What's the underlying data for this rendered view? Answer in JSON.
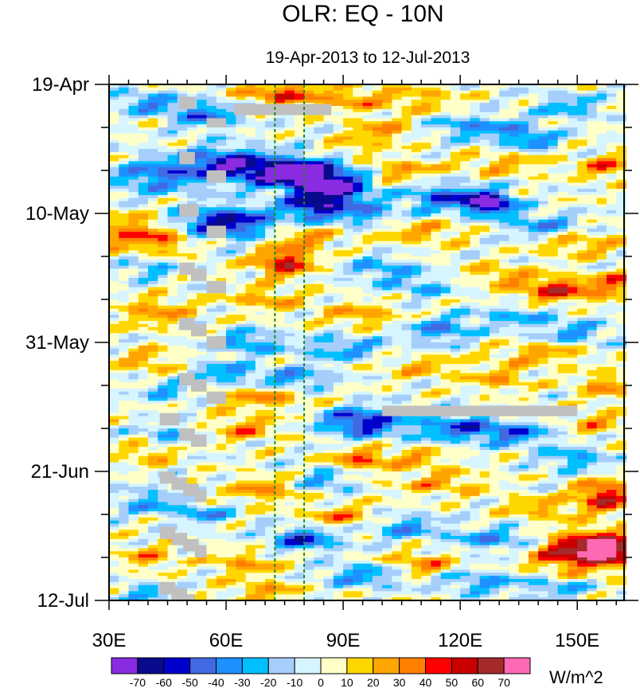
{
  "chart_data": {
    "type": "heatmap",
    "title": "OLR: EQ - 10N",
    "subtitle": "19-Apr-2013 to 12-Jul-2013",
    "xlabel": "",
    "ylabel": "",
    "xlim": [
      30,
      162
    ],
    "x_ticks": [
      {
        "value": 30,
        "label": "30E"
      },
      {
        "value": 60,
        "label": "60E"
      },
      {
        "value": 90,
        "label": "90E"
      },
      {
        "value": 120,
        "label": "120E"
      },
      {
        "value": 150,
        "label": "150E"
      }
    ],
    "time_ticks": [
      {
        "day": 0,
        "label": "19-Apr"
      },
      {
        "day": 21,
        "label": "10-May"
      },
      {
        "day": 42,
        "label": "31-May"
      },
      {
        "day": 63,
        "label": "21-Jun"
      },
      {
        "day": 84,
        "label": "12-Jul"
      }
    ],
    "time_range_days": [
      0,
      84
    ],
    "reference_lines_lon": [
      72.5,
      80
    ],
    "reference_line_color": "#228822",
    "missing_color": "#c0c0c0",
    "missing_segments": [
      {
        "lon": [
          62,
          87
        ],
        "day": [
          3.2,
          5.0
        ]
      },
      {
        "lon": [
          100,
          150
        ],
        "day": [
          52.3,
          54.0
        ]
      },
      {
        "lon": [
          48,
          52
        ],
        "day": [
          2.0,
          4.0
        ]
      },
      {
        "lon": [
          55,
          60
        ],
        "day": [
          5.5,
          7.0
        ]
      },
      {
        "lon": [
          48,
          52
        ],
        "day": [
          11.0,
          13.0
        ]
      },
      {
        "lon": [
          55,
          60
        ],
        "day": [
          14.0,
          16.0
        ]
      },
      {
        "lon": [
          48,
          53
        ],
        "day": [
          19.5,
          21.5
        ]
      },
      {
        "lon": [
          55,
          60
        ],
        "day": [
          23.0,
          25.0
        ]
      },
      {
        "lon": [
          48,
          52
        ],
        "day": [
          29.0,
          31.0
        ]
      },
      {
        "lon": [
          51,
          55
        ],
        "day": [
          30.0,
          32.0
        ]
      },
      {
        "lon": [
          55,
          60
        ],
        "day": [
          32.0,
          34.0
        ]
      },
      {
        "lon": [
          48,
          52
        ],
        "day": [
          38.0,
          40.0
        ]
      },
      {
        "lon": [
          51,
          55
        ],
        "day": [
          39.0,
          41.0
        ]
      },
      {
        "lon": [
          55,
          60
        ],
        "day": [
          41.0,
          43.0
        ]
      },
      {
        "lon": [
          48,
          52
        ],
        "day": [
          47.0,
          49.0
        ]
      },
      {
        "lon": [
          51,
          55
        ],
        "day": [
          48.0,
          50.0
        ]
      },
      {
        "lon": [
          55,
          60
        ],
        "day": [
          50.0,
          52.0
        ]
      },
      {
        "lon": [
          43,
          48
        ],
        "day": [
          53.5,
          55.5
        ]
      },
      {
        "lon": [
          48,
          52
        ],
        "day": [
          56.0,
          58.0
        ]
      },
      {
        "lon": [
          51,
          55
        ],
        "day": [
          57.0,
          59.0
        ]
      },
      {
        "lon": [
          43,
          47
        ],
        "day": [
          63.0,
          65.0
        ]
      },
      {
        "lon": [
          46,
          50
        ],
        "day": [
          64.0,
          66.0
        ]
      },
      {
        "lon": [
          49,
          53
        ],
        "day": [
          65.0,
          67.0
        ]
      },
      {
        "lon": [
          52,
          55
        ],
        "day": [
          66.0,
          68.0
        ]
      },
      {
        "lon": [
          43,
          47
        ],
        "day": [
          72.0,
          74.0
        ]
      },
      {
        "lon": [
          46,
          50
        ],
        "day": [
          73.0,
          75.0
        ]
      },
      {
        "lon": [
          49,
          53
        ],
        "day": [
          74.0,
          76.0
        ]
      },
      {
        "lon": [
          52,
          55
        ],
        "day": [
          75.0,
          77.0
        ]
      },
      {
        "lon": [
          43,
          47
        ],
        "day": [
          81.0,
          83.0
        ]
      },
      {
        "lon": [
          46,
          50
        ],
        "day": [
          82.0,
          84.0
        ]
      },
      {
        "lon": [
          49,
          52
        ],
        "day": [
          83.0,
          84.0
        ]
      }
    ],
    "anomaly_features": [
      {
        "lon": 75,
        "day": 1.5,
        "amp": 45,
        "slon": 7,
        "sday": 1.3
      },
      {
        "lon": 93,
        "day": 2.5,
        "amp": 25,
        "slon": 6,
        "sday": 1.3
      },
      {
        "lon": 110,
        "day": 2.5,
        "amp": 22,
        "slon": 7,
        "sday": 1.5
      },
      {
        "lon": 148,
        "day": 3.5,
        "amp": -28,
        "slon": 6,
        "sday": 1.3
      },
      {
        "lon": 40,
        "day": 3.0,
        "amp": -35,
        "slon": 6,
        "sday": 1.2
      },
      {
        "lon": 55,
        "day": 5.0,
        "amp": -40,
        "slon": 6,
        "sday": 1.5
      },
      {
        "lon": 100,
        "day": 7.5,
        "amp": 30,
        "slon": 6,
        "sday": 1.2
      },
      {
        "lon": 125,
        "day": 7.0,
        "amp": -35,
        "slon": 9,
        "sday": 1.3
      },
      {
        "lon": 138,
        "day": 9.0,
        "amp": -40,
        "slon": 5,
        "sday": 1.0
      },
      {
        "lon": 60,
        "day": 13.0,
        "amp": -60,
        "slon": 8,
        "sday": 1.8
      },
      {
        "lon": 78,
        "day": 14.5,
        "amp": -80,
        "slon": 9,
        "sday": 1.8
      },
      {
        "lon": 88,
        "day": 17.0,
        "amp": -65,
        "slon": 6,
        "sday": 1.6
      },
      {
        "lon": 42,
        "day": 15.0,
        "amp": -40,
        "slon": 8,
        "sday": 2.0
      },
      {
        "lon": 105,
        "day": 14.0,
        "amp": 28,
        "slon": 6,
        "sday": 1.2
      },
      {
        "lon": 130,
        "day": 13.0,
        "amp": 22,
        "slon": 8,
        "sday": 1.2
      },
      {
        "lon": 158,
        "day": 13.5,
        "amp": 35,
        "slon": 5,
        "sday": 1.3
      },
      {
        "lon": 93,
        "day": 10.5,
        "amp": 18,
        "slon": 5,
        "sday": 1.0
      },
      {
        "lon": 118,
        "day": 18.5,
        "amp": -50,
        "slon": 8,
        "sday": 1.5
      },
      {
        "lon": 128,
        "day": 19.5,
        "amp": -70,
        "slon": 4,
        "sday": 1.2
      },
      {
        "lon": 95,
        "day": 21.0,
        "amp": -35,
        "slon": 6,
        "sday": 1.4
      },
      {
        "lon": 60,
        "day": 22.5,
        "amp": -65,
        "slon": 9,
        "sday": 1.8
      },
      {
        "lon": 82,
        "day": 20.0,
        "amp": -55,
        "slon": 5,
        "sday": 1.5
      },
      {
        "lon": 35,
        "day": 24.0,
        "amp": 35,
        "slon": 7,
        "sday": 2.0
      },
      {
        "lon": 45,
        "day": 25.5,
        "amp": 25,
        "slon": 5,
        "sday": 1.5
      },
      {
        "lon": 80,
        "day": 25.0,
        "amp": 30,
        "slon": 6,
        "sday": 1.3
      },
      {
        "lon": 110,
        "day": 24.0,
        "amp": 25,
        "slon": 8,
        "sday": 1.3
      },
      {
        "lon": 140,
        "day": 23.0,
        "amp": -30,
        "slon": 7,
        "sday": 1.5
      },
      {
        "lon": 150,
        "day": 26.0,
        "amp": 25,
        "slon": 8,
        "sday": 1.2
      },
      {
        "lon": 75,
        "day": 29.0,
        "amp": 55,
        "slon": 5,
        "sday": 1.6
      },
      {
        "lon": 145,
        "day": 33.5,
        "amp": 50,
        "slon": 7,
        "sday": 1.4
      },
      {
        "lon": 130,
        "day": 31.0,
        "amp": 25,
        "slon": 6,
        "sday": 1.2
      },
      {
        "lon": 160,
        "day": 32.5,
        "amp": 38,
        "slon": 4,
        "sday": 1.4
      },
      {
        "lon": 40,
        "day": 30.0,
        "amp": -25,
        "slon": 5,
        "sday": 1.2
      },
      {
        "lon": 100,
        "day": 30.0,
        "amp": -30,
        "slon": 6,
        "sday": 1.4
      },
      {
        "lon": 110,
        "day": 33.0,
        "amp": -25,
        "slon": 6,
        "sday": 1.3
      },
      {
        "lon": 70,
        "day": 35.0,
        "amp": 25,
        "slon": 7,
        "sday": 1.2
      },
      {
        "lon": 42,
        "day": 37.0,
        "amp": 30,
        "slon": 6,
        "sday": 1.5
      },
      {
        "lon": 95,
        "day": 37.5,
        "amp": 25,
        "slon": 7,
        "sday": 1.3
      },
      {
        "lon": 135,
        "day": 38.0,
        "amp": -25,
        "slon": 8,
        "sday": 1.3
      },
      {
        "lon": 115,
        "day": 40.0,
        "amp": -35,
        "slon": 6,
        "sday": 1.5
      },
      {
        "lon": 150,
        "day": 40.5,
        "amp": -30,
        "slon": 6,
        "sday": 1.2
      },
      {
        "lon": 65,
        "day": 42.0,
        "amp": -35,
        "slon": 6,
        "sday": 1.3
      },
      {
        "lon": 90,
        "day": 43.0,
        "amp": -30,
        "slon": 8,
        "sday": 1.4
      },
      {
        "lon": 110,
        "day": 46.0,
        "amp": 22,
        "slon": 8,
        "sday": 1.2
      },
      {
        "lon": 140,
        "day": 44.0,
        "amp": 25,
        "slon": 8,
        "sday": 1.3
      },
      {
        "lon": 60,
        "day": 47.0,
        "amp": -35,
        "slon": 6,
        "sday": 1.2
      },
      {
        "lon": 78,
        "day": 48.0,
        "amp": -35,
        "slon": 6,
        "sday": 1.3
      },
      {
        "lon": 40,
        "day": 45.0,
        "amp": 25,
        "slon": 5,
        "sday": 1.4
      },
      {
        "lon": 45,
        "day": 50.0,
        "amp": -25,
        "slon": 5,
        "sday": 1.3
      },
      {
        "lon": 70,
        "day": 51.0,
        "amp": 30,
        "slon": 8,
        "sday": 1.3
      },
      {
        "lon": 130,
        "day": 48.0,
        "amp": 25,
        "slon": 6,
        "sday": 1.2
      },
      {
        "lon": 158,
        "day": 49.0,
        "amp": 30,
        "slon": 5,
        "sday": 1.3
      },
      {
        "lon": 95,
        "day": 55.0,
        "amp": -60,
        "slon": 7,
        "sday": 1.6
      },
      {
        "lon": 120,
        "day": 56.0,
        "amp": -45,
        "slon": 8,
        "sday": 1.4
      },
      {
        "lon": 135,
        "day": 57.0,
        "amp": -35,
        "slon": 6,
        "sday": 1.3
      },
      {
        "lon": 45,
        "day": 57.0,
        "amp": -25,
        "slon": 5,
        "sday": 1.3
      },
      {
        "lon": 65,
        "day": 56.0,
        "amp": 30,
        "slon": 6,
        "sday": 1.4
      },
      {
        "lon": 155,
        "day": 55.0,
        "amp": 25,
        "slon": 5,
        "sday": 1.3
      },
      {
        "lon": 40,
        "day": 60.0,
        "amp": 25,
        "slon": 5,
        "sday": 1.3
      },
      {
        "lon": 95,
        "day": 61.0,
        "amp": 40,
        "slon": 5,
        "sday": 1.2
      },
      {
        "lon": 110,
        "day": 61.0,
        "amp": 25,
        "slon": 5,
        "sday": 1.2
      },
      {
        "lon": 150,
        "day": 61.0,
        "amp": -30,
        "slon": 6,
        "sday": 1.3
      },
      {
        "lon": 70,
        "day": 66.0,
        "amp": 30,
        "slon": 6,
        "sday": 1.4
      },
      {
        "lon": 85,
        "day": 64.5,
        "amp": -30,
        "slon": 5,
        "sday": 1.3
      },
      {
        "lon": 115,
        "day": 65.0,
        "amp": 25,
        "slon": 8,
        "sday": 1.3
      },
      {
        "lon": 157,
        "day": 67.0,
        "amp": 55,
        "slon": 5,
        "sday": 1.8
      },
      {
        "lon": 140,
        "day": 69.0,
        "amp": 25,
        "slon": 6,
        "sday": 1.2
      },
      {
        "lon": 40,
        "day": 68.0,
        "amp": -30,
        "slon": 6,
        "sday": 1.4
      },
      {
        "lon": 55,
        "day": 70.0,
        "amp": -30,
        "slon": 5,
        "sday": 1.2
      },
      {
        "lon": 90,
        "day": 70.5,
        "amp": 30,
        "slon": 7,
        "sday": 1.3
      },
      {
        "lon": 105,
        "day": 72.0,
        "amp": -35,
        "slon": 7,
        "sday": 1.3
      },
      {
        "lon": 80,
        "day": 74.0,
        "amp": -50,
        "slon": 6,
        "sday": 1.3
      },
      {
        "lon": 130,
        "day": 74.0,
        "amp": -35,
        "slon": 8,
        "sday": 1.3
      },
      {
        "lon": 150,
        "day": 76.0,
        "amp": 65,
        "slon": 8,
        "sday": 2.2
      },
      {
        "lon": 158,
        "day": 75.5,
        "amp": 75,
        "slon": 4,
        "sday": 1.4
      },
      {
        "lon": 110,
        "day": 78.0,
        "amp": 30,
        "slon": 6,
        "sday": 1.3
      },
      {
        "lon": 65,
        "day": 78.0,
        "amp": 25,
        "slon": 6,
        "sday": 1.3
      },
      {
        "lon": 40,
        "day": 77.0,
        "amp": 25,
        "slon": 5,
        "sday": 1.3
      },
      {
        "lon": 95,
        "day": 80.0,
        "amp": -35,
        "slon": 7,
        "sday": 1.3
      },
      {
        "lon": 125,
        "day": 81.0,
        "amp": -30,
        "slon": 7,
        "sday": 1.3
      },
      {
        "lon": 145,
        "day": 82.0,
        "amp": -25,
        "slon": 6,
        "sday": 1.3
      },
      {
        "lon": 70,
        "day": 82.5,
        "amp": 25,
        "slon": 7,
        "sday": 1.2
      },
      {
        "lon": 40,
        "day": 83.0,
        "amp": -30,
        "slon": 5,
        "sday": 1.2
      }
    ],
    "colorbar": {
      "unit": "W/m^2",
      "labels": [
        "-70",
        "-60",
        "-50",
        "-40",
        "-30",
        "-20",
        "-10",
        "0",
        "10",
        "20",
        "30",
        "40",
        "50",
        "60",
        "70"
      ],
      "levels": [
        -70,
        -60,
        -50,
        -40,
        -30,
        -20,
        -10,
        0,
        10,
        20,
        30,
        40,
        50,
        60,
        70
      ],
      "colors": [
        "#8a2be2",
        "#0a0a8c",
        "#0000cd",
        "#4169e1",
        "#1e90ff",
        "#00bfff",
        "#a6cefa",
        "#d6f5ff",
        "#ffffc8",
        "#ffd700",
        "#ffa500",
        "#ff7f00",
        "#ff0000",
        "#c80000",
        "#a52a2a",
        "#ff69b4"
      ]
    }
  }
}
